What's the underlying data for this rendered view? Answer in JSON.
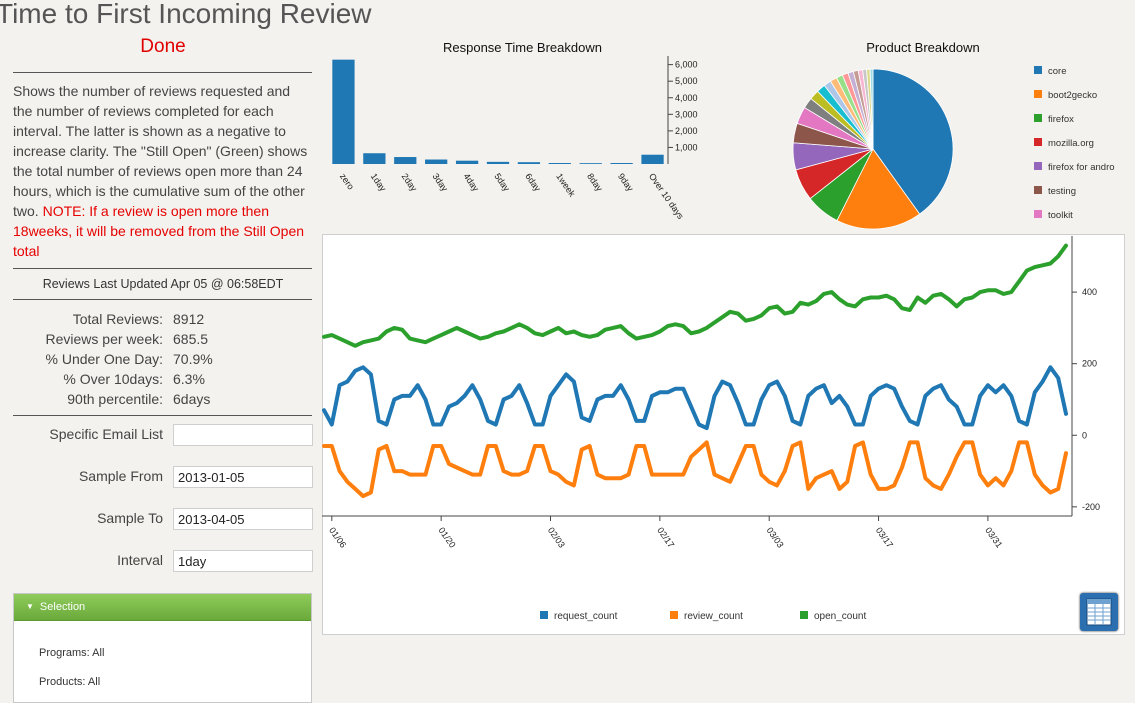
{
  "page": {
    "title": "Time to First Incoming Review",
    "status": "Done",
    "description": "Shows the number of reviews requested and the number of reviews completed for each interval. The latter is shown as a negative to increase clarity. The \"Still Open\" (Green) shows the total number of reviews open more than 24 hours, which is the cumulative sum of the other two.",
    "note": "NOTE: If a review is open more then 18weeks, it will be removed from the Still Open total",
    "updated": "Reviews Last Updated Apr 05 @ 06:58EDT"
  },
  "stats": [
    {
      "label": "Total Reviews:",
      "value": "8912"
    },
    {
      "label": "Reviews per week:",
      "value": "685.5"
    },
    {
      "label": "% Under One Day:",
      "value": "70.9%"
    },
    {
      "label": "% Over 10days:",
      "value": "6.3%"
    },
    {
      "label": "90th percentile:",
      "value": "6days"
    }
  ],
  "form": {
    "email_label": "Specific Email List",
    "email_value": "",
    "from_label": "Sample From",
    "from_value": "2013-01-05",
    "to_label": "Sample To",
    "to_value": "2013-04-05",
    "interval_label": "Interval",
    "interval_value": "1day"
  },
  "selection": {
    "header": "Selection",
    "programs": "Programs: All",
    "products": "Products: All"
  },
  "icons": {
    "panel_toggle": "triangle-down-icon",
    "table_button": "table-grid-icon"
  },
  "colors": {
    "blue": "#1f77b4",
    "orange": "#ff7f0e",
    "green": "#2ca02c",
    "status_red": "#e00000"
  },
  "chart_data": [
    {
      "type": "bar",
      "title": "Response Time Breakdown",
      "categories": [
        "zero",
        "1day",
        "2day",
        "3day",
        "4day",
        "5day",
        "6day",
        "1week",
        "8day",
        "9day",
        "Over 10 days"
      ],
      "values": [
        6300,
        650,
        420,
        270,
        200,
        130,
        110,
        60,
        50,
        60,
        560
      ],
      "yticks": [
        "1,000",
        "2,000",
        "3,000",
        "4,000",
        "5,000",
        "6,000"
      ],
      "ylim": [
        0,
        6400
      ],
      "y_axis_side": "right"
    },
    {
      "type": "pie",
      "title": "Product Breakdown",
      "legend": [
        {
          "label": "core",
          "color": "#1f77b4"
        },
        {
          "label": "boot2gecko",
          "color": "#ff7f0e"
        },
        {
          "label": "firefox",
          "color": "#2ca02c"
        },
        {
          "label": "mozilla.org",
          "color": "#d62728"
        },
        {
          "label": "firefox for andro",
          "color": "#9467bd"
        },
        {
          "label": "testing",
          "color": "#8c564b"
        },
        {
          "label": "toolkit",
          "color": "#e377c2"
        }
      ],
      "slices": [
        {
          "value": 40.5,
          "color": "#1f77b4"
        },
        {
          "value": 17.5,
          "color": "#ff7f0e"
        },
        {
          "value": 7.0,
          "color": "#2ca02c"
        },
        {
          "value": 6.5,
          "color": "#d62728"
        },
        {
          "value": 5.5,
          "color": "#9467bd"
        },
        {
          "value": 4.0,
          "color": "#8c564b"
        },
        {
          "value": 3.5,
          "color": "#e377c2"
        },
        {
          "value": 2.2,
          "color": "#7f7f7f"
        },
        {
          "value": 2.0,
          "color": "#bcbd22"
        },
        {
          "value": 1.8,
          "color": "#17becf"
        },
        {
          "value": 1.5,
          "color": "#aec7e8"
        },
        {
          "value": 1.4,
          "color": "#ffbb78"
        },
        {
          "value": 1.3,
          "color": "#98df8a"
        },
        {
          "value": 1.2,
          "color": "#ff9896"
        },
        {
          "value": 1.1,
          "color": "#c5b0d5"
        },
        {
          "value": 1.0,
          "color": "#c49c94"
        },
        {
          "value": 0.9,
          "color": "#f7b6d2"
        },
        {
          "value": 0.8,
          "color": "#c7c7c7"
        },
        {
          "value": 0.7,
          "color": "#dbdb8d"
        },
        {
          "value": 0.6,
          "color": "#9edae5"
        }
      ]
    },
    {
      "type": "line",
      "title": "",
      "xticks": [
        "01/06",
        "01/20",
        "02/03",
        "02/17",
        "03/03",
        "03/17",
        "03/31"
      ],
      "yticks": [
        "-200",
        "0",
        "200",
        "400"
      ],
      "ylim": [
        -220,
        540
      ],
      "y_axis_side": "right",
      "x_start": "2013-01-05",
      "series": [
        {
          "name": "request_count",
          "color": "#1f77b4",
          "values": [
            70,
            30,
            140,
            150,
            180,
            190,
            170,
            40,
            30,
            100,
            110,
            110,
            140,
            100,
            30,
            30,
            80,
            90,
            110,
            140,
            100,
            40,
            30,
            100,
            110,
            140,
            90,
            30,
            30,
            110,
            140,
            170,
            150,
            50,
            40,
            100,
            110,
            110,
            140,
            100,
            40,
            40,
            110,
            120,
            120,
            130,
            130,
            80,
            30,
            20,
            110,
            150,
            140,
            90,
            30,
            30,
            100,
            140,
            150,
            110,
            40,
            30,
            110,
            130,
            140,
            90,
            110,
            80,
            30,
            30,
            110,
            130,
            140,
            130,
            80,
            40,
            30,
            110,
            130,
            140,
            100,
            80,
            30,
            30,
            110,
            140,
            120,
            140,
            110,
            40,
            30,
            120,
            150,
            190,
            160,
            60
          ]
        },
        {
          "name": "review_count",
          "color": "#ff7f0e",
          "values": [
            -30,
            -30,
            -100,
            -130,
            -150,
            -170,
            -160,
            -40,
            -30,
            -100,
            -100,
            -110,
            -110,
            -110,
            -30,
            -30,
            -80,
            -90,
            -100,
            -110,
            -110,
            -30,
            -30,
            -100,
            -110,
            -110,
            -100,
            -30,
            -30,
            -100,
            -110,
            -130,
            -140,
            -40,
            -30,
            -110,
            -120,
            -120,
            -120,
            -110,
            -30,
            -30,
            -110,
            -110,
            -110,
            -110,
            -110,
            -60,
            -40,
            -20,
            -110,
            -120,
            -130,
            -80,
            -30,
            -30,
            -110,
            -130,
            -140,
            -100,
            -30,
            -20,
            -150,
            -120,
            -110,
            -100,
            -150,
            -130,
            -30,
            -20,
            -110,
            -150,
            -150,
            -140,
            -90,
            -20,
            -20,
            -120,
            -140,
            -150,
            -110,
            -60,
            -20,
            -20,
            -110,
            -140,
            -120,
            -140,
            -100,
            -20,
            -20,
            -110,
            -140,
            -160,
            -150,
            -50
          ]
        },
        {
          "name": "open_count",
          "color": "#2ca02c",
          "values": [
            275,
            280,
            270,
            260,
            250,
            260,
            265,
            270,
            290,
            300,
            295,
            270,
            265,
            260,
            270,
            280,
            290,
            300,
            290,
            280,
            270,
            275,
            285,
            290,
            300,
            310,
            300,
            285,
            280,
            290,
            300,
            285,
            290,
            280,
            275,
            280,
            295,
            300,
            305,
            285,
            270,
            275,
            280,
            290,
            305,
            310,
            305,
            285,
            290,
            300,
            315,
            330,
            345,
            340,
            320,
            325,
            335,
            355,
            360,
            340,
            345,
            370,
            365,
            375,
            395,
            400,
            380,
            365,
            360,
            380,
            385,
            385,
            390,
            380,
            355,
            350,
            385,
            370,
            390,
            395,
            380,
            360,
            380,
            385,
            400,
            405,
            405,
            395,
            400,
            430,
            460,
            470,
            475,
            480,
            500,
            530
          ]
        }
      ]
    }
  ]
}
